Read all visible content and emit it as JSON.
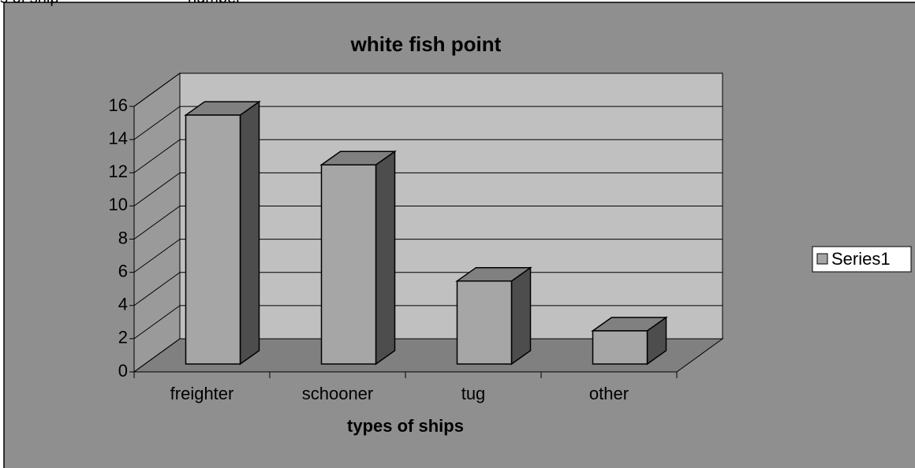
{
  "header_cells": [
    "s of ship",
    "number"
  ],
  "chart_data": {
    "type": "bar3d",
    "title": "white fish point",
    "x_label": "types of ships",
    "categories": [
      "freighter",
      "schooner",
      "tug",
      "other"
    ],
    "series": [
      {
        "name": "Series1",
        "color": "#a6a6a6",
        "values": [
          15,
          12,
          5,
          2
        ]
      }
    ],
    "ylim": [
      0,
      16
    ],
    "yticks": [
      0,
      2,
      4,
      6,
      8,
      10,
      12,
      14,
      16
    ],
    "grid": true,
    "legend": "right"
  }
}
